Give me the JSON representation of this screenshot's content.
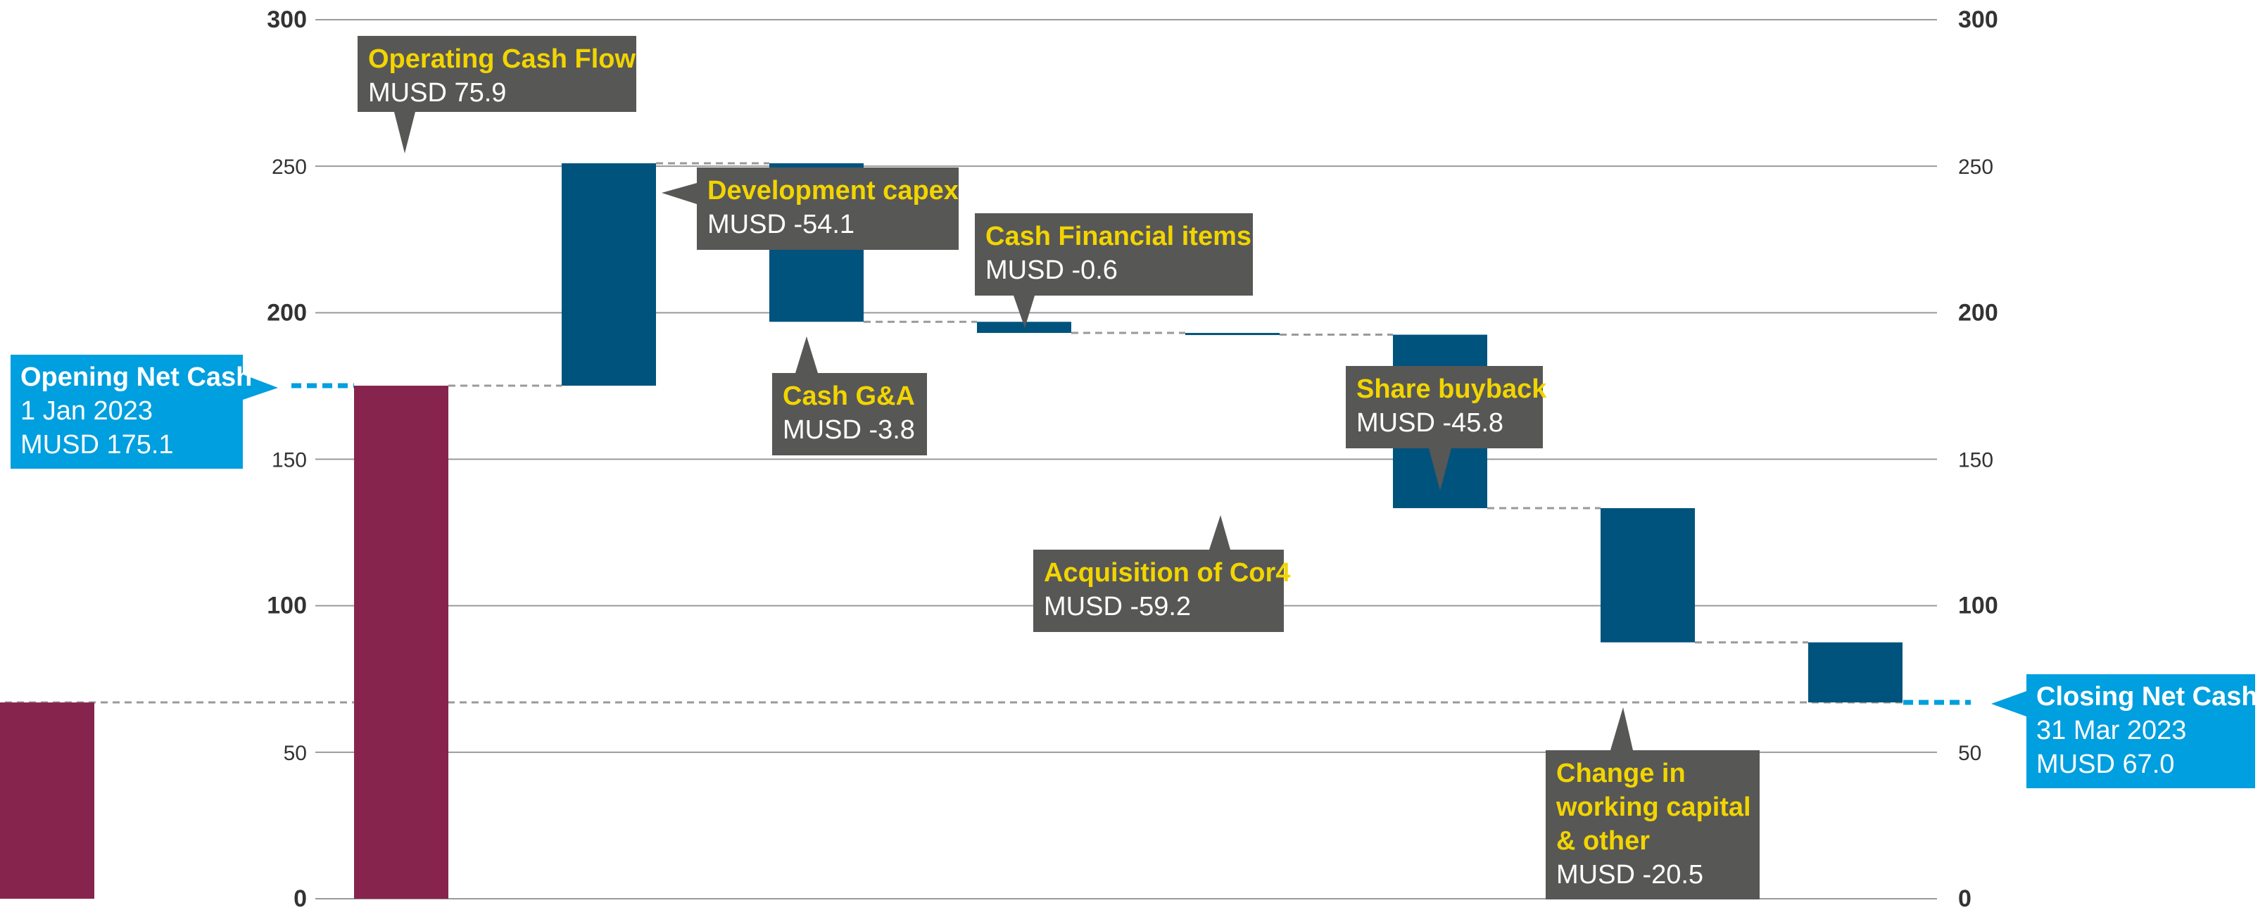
{
  "chart_data": {
    "type": "waterfall",
    "ylim": [
      0,
      300
    ],
    "yticks": [
      0,
      50,
      100,
      150,
      200,
      250,
      300
    ],
    "grid": true,
    "colors": {
      "total": "#87244d",
      "change": "#00537d",
      "callout": "#575756",
      "callout_title": "#f2d500",
      "endpoint": "#009fdf"
    },
    "steps": [
      {
        "kind": "total",
        "start": 0,
        "end": 175.1
      },
      {
        "kind": "change",
        "start": 175.1,
        "end": 251.0,
        "title": "Operating Cash Flow",
        "value_label": "MUSD 75.9",
        "value": 75.9
      },
      {
        "kind": "change",
        "start": 251.0,
        "end": 196.9,
        "title": "Development capex",
        "value_label": "MUSD -54.1",
        "value": -54.1
      },
      {
        "kind": "change",
        "start": 196.9,
        "end": 193.1,
        "title": "Cash G&A",
        "value_label": "MUSD -3.8",
        "value": -3.8
      },
      {
        "kind": "change",
        "start": 193.1,
        "end": 192.5,
        "title": "Cash Financial items",
        "value_label": "MUSD -0.6",
        "value": -0.6
      },
      {
        "kind": "change",
        "start": 192.5,
        "end": 133.3,
        "title": "Acquisition of Cor4",
        "value_label": "MUSD -59.2",
        "value": -59.2
      },
      {
        "kind": "change",
        "start": 133.3,
        "end": 87.5,
        "title": "Share buyback",
        "value_label": "MUSD -45.8",
        "value": -45.8
      },
      {
        "kind": "change",
        "start": 87.5,
        "end": 67.0,
        "title_lines": [
          "Change in",
          "working capital",
          "& other"
        ],
        "value_label": "MUSD -20.5",
        "value": -20.5
      },
      {
        "kind": "total",
        "start": 0,
        "end": 67.0
      }
    ],
    "opening": {
      "title": "Opening Net Cash",
      "date": "1 Jan 2023",
      "value_label": "MUSD 175.1",
      "value": 175.1
    },
    "closing": {
      "title": "Closing Net Cash",
      "date": "31 Mar 2023",
      "value_label": "MUSD 67.0",
      "value": 67.0
    }
  }
}
